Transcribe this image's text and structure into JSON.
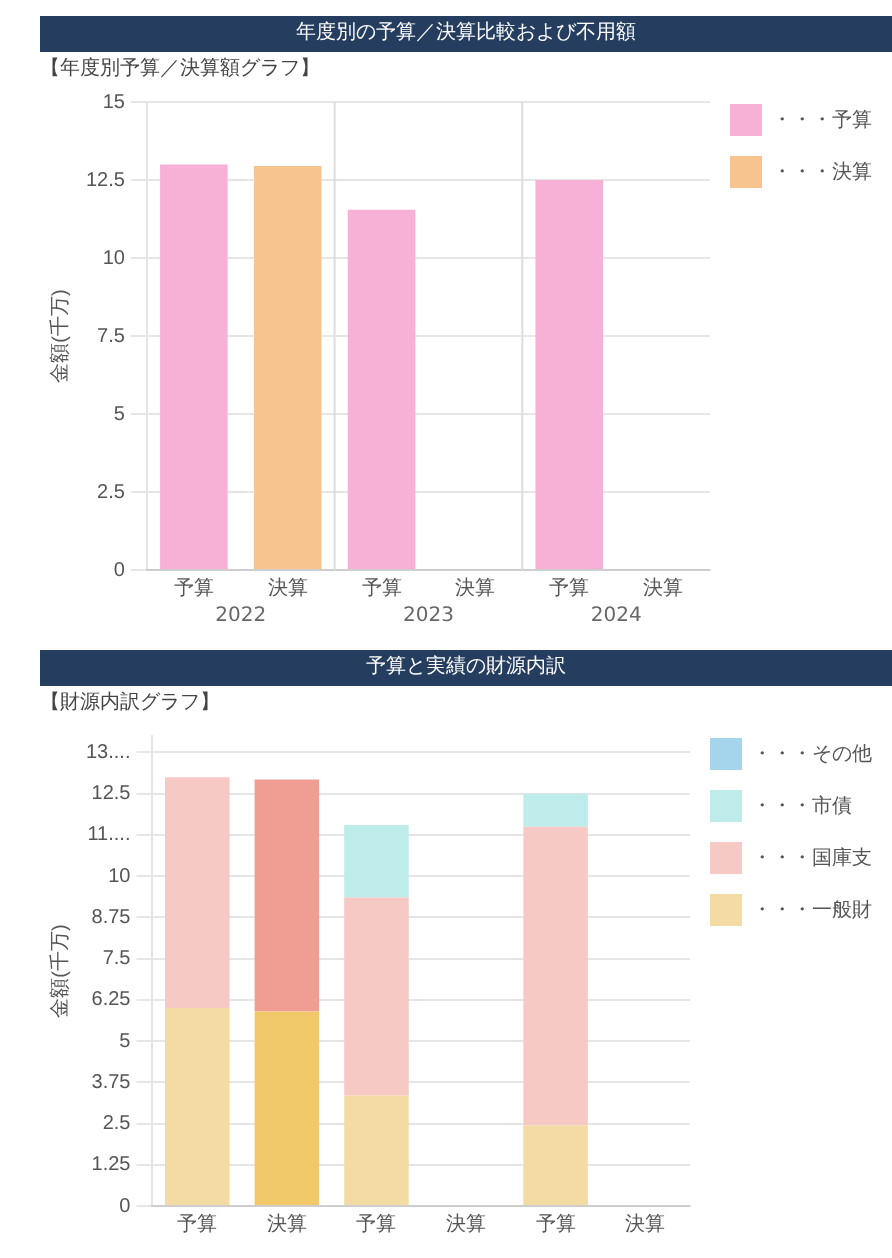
{
  "chart_data": [
    {
      "type": "bar",
      "title": "年度別の予算／決算比較および不用額",
      "subtitle": "【年度別予算／決算額グラフ】",
      "ylabel": "金額(千万)",
      "categories": [
        "予算",
        "決算",
        "予算",
        "決算",
        "予算",
        "決算"
      ],
      "series": [
        {
          "name": "・・・予算",
          "color": "#f7b0d6",
          "values": [
            13.0,
            null,
            11.55,
            null,
            12.5,
            null
          ]
        },
        {
          "name": "・・・決算",
          "color": "#f7c38f",
          "values": [
            null,
            12.95,
            null,
            0,
            null,
            0
          ]
        }
      ],
      "annotations": [
        "2022",
        "2023",
        "2024"
      ],
      "ylim": [
        0,
        15
      ],
      "yticks": [
        0,
        2.5,
        5,
        7.5,
        10,
        12.5,
        15
      ],
      "grid": "y",
      "legend": "right"
    },
    {
      "type": "bar",
      "title": "予算と実績の財源内訳",
      "subtitle": "【財源内訳グラフ】",
      "ylabel": "金額(千万)",
      "categories": [
        "予算",
        "決算",
        "予算",
        "決算",
        "予算",
        "決算"
      ],
      "stacked": true,
      "series": [
        {
          "name": "・・・一般財",
          "color": "#f3dba3",
          "colors": [
            "#f3dba3",
            "#f2c96a",
            "#f3dba3",
            "#f2c96a",
            "#f3dba3",
            "#f2c96a"
          ],
          "values": [
            6.0,
            5.9,
            3.35,
            0,
            2.45,
            0
          ]
        },
        {
          "name": "・・・国庫支",
          "color": "#f7c9c4",
          "colors": [
            "#f7c9c4",
            "#f09e93",
            "#f7c9c4",
            "#f09e93",
            "#f7c9c4",
            "#f09e93"
          ],
          "values": [
            7.0,
            7.03,
            6.0,
            0,
            9.05,
            0
          ]
        },
        {
          "name": "・・・市債",
          "color": "#bdeceb",
          "values": [
            0,
            0,
            2.2,
            0,
            1.0,
            0
          ]
        },
        {
          "name": "・・・その他",
          "color": "#a5d5ec",
          "values": [
            0,
            0,
            0,
            0,
            0,
            0
          ]
        }
      ],
      "ylim": [
        0,
        14.25
      ],
      "yticks": [
        0,
        1.25,
        2.5,
        3.75,
        5,
        6.25,
        7.5,
        8.75,
        10,
        {
          "value": 11.25,
          "label": "11...."
        },
        12.5,
        {
          "value": 13.75,
          "label": "13...."
        }
      ],
      "grid": "y",
      "legend": "right"
    }
  ]
}
